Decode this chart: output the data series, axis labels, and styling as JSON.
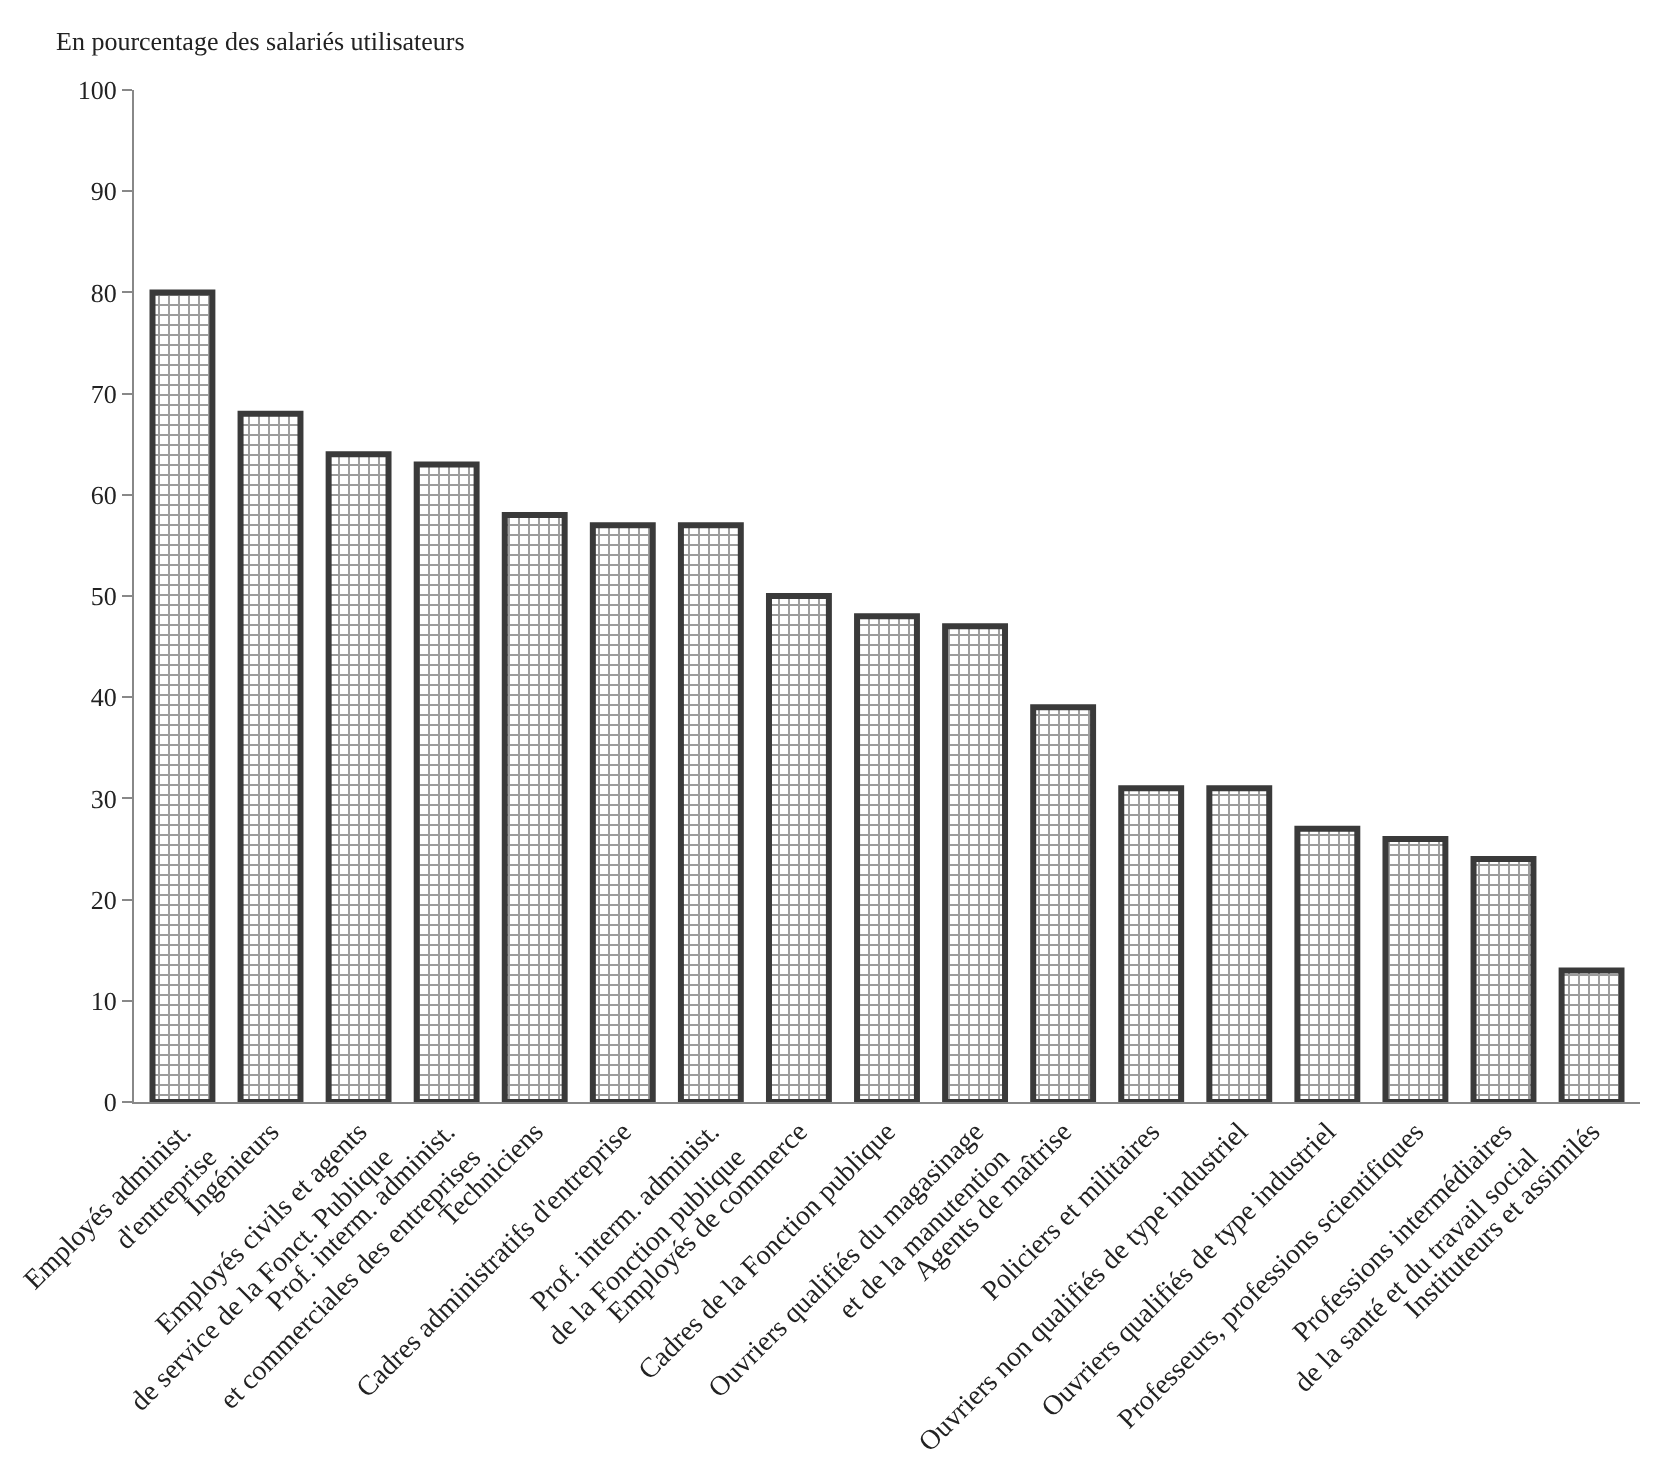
{
  "chart_data": {
    "type": "bar",
    "ylabel": "En pourcentage des salariés utilisateurs",
    "categories": [
      "Employés administ.\nd'entreprise",
      "Ingénieurs",
      "Employés civils et agents\nde service de la Fonct. Publique",
      "Prof. interm. administ.\net commerciales des entreprises",
      "Techniciens",
      "Cadres administratifs d'entreprise",
      "Prof. interm. administ.\nde la Fonction publique",
      "Employés de commerce",
      "Cadres de la Fonction publique",
      "Ouvriers qualifiés du magasinage\net de la manutention",
      "Agents de maîtrise",
      "Policiers et militaires",
      "Ouvriers non qualifiés de type industriel",
      "Ouvriers qualifiés de type industriel",
      "Professeurs, professions scientifiques",
      "Professions intermédiaires\nde la santé et du travail social",
      "Instituteurs et assimilés"
    ],
    "values": [
      80,
      68,
      64,
      63,
      58,
      57,
      57,
      50,
      48,
      47,
      39,
      31,
      31,
      27,
      26,
      24,
      13
    ],
    "color": "#3a3a3a",
    "ylim": [
      0,
      100
    ],
    "yticks": [
      0,
      10,
      20,
      30,
      40,
      50,
      60,
      70,
      80,
      90,
      100
    ],
    "legend": false
  }
}
